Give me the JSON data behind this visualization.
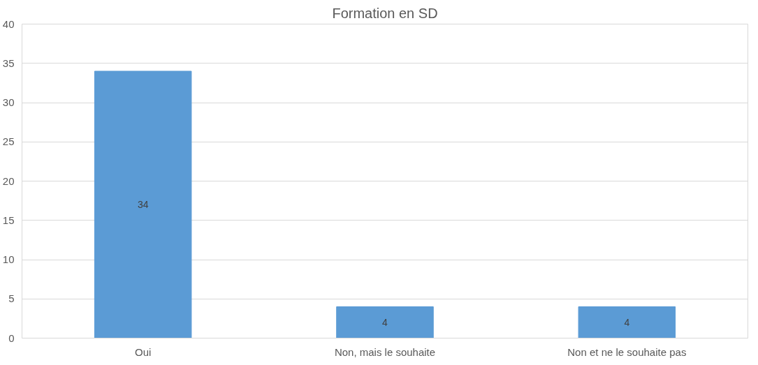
{
  "chart_data": {
    "type": "bar",
    "title": "Formation en SD",
    "categories": [
      "Oui",
      "Non, mais le souhaite",
      "Non et ne le souhaite pas"
    ],
    "values": [
      34,
      4,
      4
    ],
    "color": "#5b9bd5",
    "ylim": [
      0,
      40
    ],
    "yticks": [
      0,
      5,
      10,
      15,
      20,
      25,
      30,
      35,
      40
    ],
    "grid": "y",
    "data_labels": true
  }
}
